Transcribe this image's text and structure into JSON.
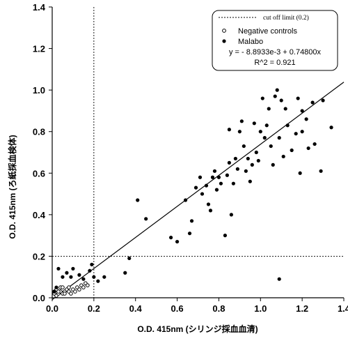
{
  "chart_data": {
    "type": "scatter",
    "xlabel": "O.D. 415nm (シリンジ採血血清)",
    "ylabel": "O.D. 415nm (ろ紙採血検体)",
    "xlim": [
      0,
      1.4
    ],
    "ylim": [
      0,
      1.4
    ],
    "xticks": [
      0.0,
      0.2,
      0.4,
      0.6,
      0.8,
      1.0,
      1.2,
      1.4
    ],
    "yticks": [
      0.0,
      0.2,
      0.4,
      0.6,
      0.8,
      1.0,
      1.2,
      1.4
    ],
    "xtick_labels": [
      "0.0",
      "0.2",
      "0.4",
      "0.6",
      "0.8",
      "1.0",
      "1.2",
      "1.4"
    ],
    "ytick_labels": [
      "0.0",
      "0.2",
      "0.4",
      "0.6",
      "0.8",
      "1.0",
      "1.2",
      "1.4"
    ],
    "grid": false,
    "legend_position": "top-right",
    "cutoff": {
      "value": 0.2,
      "label": "cut off limit (0.2)"
    },
    "fit": {
      "intercept": -0.0088933,
      "slope": 0.748,
      "equation": "y = - 8.8933e-3 + 0.74800x",
      "r2_label": "R^2 = 0.921"
    },
    "series": [
      {
        "name": "Negative controls",
        "marker": "open-circle",
        "points": [
          [
            0.01,
            0.02
          ],
          [
            0.02,
            0.01
          ],
          [
            0.03,
            0.02
          ],
          [
            0.04,
            0.03
          ],
          [
            0.05,
            0.02
          ],
          [
            0.06,
            0.03
          ],
          [
            0.07,
            0.04
          ],
          [
            0.08,
            0.03
          ],
          [
            0.09,
            0.02
          ],
          [
            0.1,
            0.04
          ],
          [
            0.11,
            0.03
          ],
          [
            0.12,
            0.05
          ],
          [
            0.13,
            0.04
          ],
          [
            0.14,
            0.06
          ],
          [
            0.15,
            0.05
          ],
          [
            0.16,
            0.07
          ],
          [
            0.17,
            0.06
          ],
          [
            0.02,
            0.04
          ],
          [
            0.04,
            0.05
          ],
          [
            0.06,
            0.02
          ],
          [
            0.08,
            0.05
          ],
          [
            0.03,
            0.03
          ],
          [
            0.05,
            0.05
          ],
          [
            0.01,
            0.03
          ]
        ]
      },
      {
        "name": "Malabo",
        "marker": "filled-circle",
        "points": [
          [
            0.01,
            0.03
          ],
          [
            0.02,
            0.05
          ],
          [
            0.03,
            0.14
          ],
          [
            0.05,
            0.1
          ],
          [
            0.07,
            0.12
          ],
          [
            0.09,
            0.1
          ],
          [
            0.1,
            0.14
          ],
          [
            0.13,
            0.11
          ],
          [
            0.15,
            0.09
          ],
          [
            0.18,
            0.13
          ],
          [
            0.19,
            0.16
          ],
          [
            0.2,
            0.1
          ],
          [
            0.22,
            0.08
          ],
          [
            0.25,
            0.1
          ],
          [
            0.35,
            0.12
          ],
          [
            0.37,
            0.19
          ],
          [
            0.41,
            0.47
          ],
          [
            0.45,
            0.38
          ],
          [
            0.57,
            0.29
          ],
          [
            0.6,
            0.27
          ],
          [
            0.64,
            0.47
          ],
          [
            0.66,
            0.31
          ],
          [
            0.67,
            0.37
          ],
          [
            0.69,
            0.53
          ],
          [
            0.71,
            0.58
          ],
          [
            0.72,
            0.5
          ],
          [
            0.74,
            0.54
          ],
          [
            0.75,
            0.45
          ],
          [
            0.76,
            0.42
          ],
          [
            0.77,
            0.58
          ],
          [
            0.78,
            0.61
          ],
          [
            0.79,
            0.52
          ],
          [
            0.8,
            0.58
          ],
          [
            0.81,
            0.55
          ],
          [
            0.83,
            0.3
          ],
          [
            0.84,
            0.59
          ],
          [
            0.85,
            0.65
          ],
          [
            0.85,
            0.81
          ],
          [
            0.86,
            0.4
          ],
          [
            0.87,
            0.55
          ],
          [
            0.88,
            0.67
          ],
          [
            0.89,
            0.62
          ],
          [
            0.9,
            0.8
          ],
          [
            0.91,
            0.85
          ],
          [
            0.92,
            0.73
          ],
          [
            0.93,
            0.61
          ],
          [
            0.94,
            0.67
          ],
          [
            0.95,
            0.56
          ],
          [
            0.96,
            0.64
          ],
          [
            0.97,
            0.84
          ],
          [
            0.98,
            0.7
          ],
          [
            0.99,
            0.66
          ],
          [
            1.0,
            0.8
          ],
          [
            1.01,
            0.96
          ],
          [
            1.02,
            0.77
          ],
          [
            1.03,
            0.83
          ],
          [
            1.04,
            0.91
          ],
          [
            1.05,
            0.73
          ],
          [
            1.06,
            0.64
          ],
          [
            1.07,
            0.97
          ],
          [
            1.08,
            1.0
          ],
          [
            1.09,
            0.09
          ],
          [
            1.09,
            0.77
          ],
          [
            1.1,
            0.95
          ],
          [
            1.11,
            0.68
          ],
          [
            1.12,
            0.91
          ],
          [
            1.13,
            0.83
          ],
          [
            1.15,
            0.71
          ],
          [
            1.17,
            0.79
          ],
          [
            1.18,
            0.96
          ],
          [
            1.19,
            0.6
          ],
          [
            1.2,
            0.9
          ],
          [
            1.22,
            0.86
          ],
          [
            1.23,
            0.72
          ],
          [
            1.25,
            0.94
          ],
          [
            1.26,
            0.74
          ],
          [
            1.29,
            0.61
          ],
          [
            1.3,
            0.95
          ],
          [
            1.34,
            0.82
          ],
          [
            1.2,
            0.8
          ]
        ]
      }
    ]
  }
}
